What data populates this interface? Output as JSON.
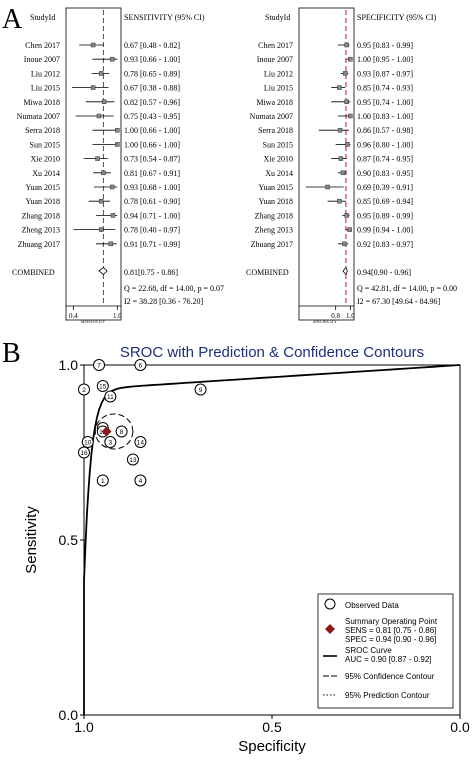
{
  "panel_a": {
    "label": "A",
    "sensitivity": {
      "header_study": "StudyId",
      "header_value": "SENSITIVITY (95% CI)",
      "axis_label": "SENSITIVITY",
      "tick_labels": [
        "0.4",
        "1.0"
      ],
      "combined_label": "COMBINED",
      "combined_text": "0.81[0.75 - 0.86]",
      "stat_q": "Q = 22.68, df = 14.00, p = 0.07",
      "stat_i2": "I2 = 38.28 [0.36 - 76.20]"
    },
    "specificity": {
      "header_study": "StudyId",
      "header_value": "SPECIFICITY (95% CI)",
      "axis_label": "SPECIFICITY",
      "tick_labels": [
        "0.8",
        "1.0"
      ],
      "combined_label": "COMBINED",
      "combined_text": "0.94[0.90 - 0.96]",
      "stat_q": "Q = 42.81, df = 14.00, p = 0.00",
      "stat_i2": "I2 = 67.30 [49.64 - 84.96]"
    }
  },
  "panel_b": {
    "label": "B",
    "legend": {
      "observed": "Observed Data",
      "summary_point": "Summary Operating Point",
      "sens": "SENS = 0.81 [0.75 - 0.86]",
      "spec": "SPEC = 0.94 [0.90 - 0.96]",
      "sroc": "SROC Curve",
      "auc": "AUC = 0.90 [0.87 - 0.92]",
      "confidence": "95% Confidence Contour",
      "prediction": "95% Prediction Contour"
    }
  },
  "chart_data": [
    {
      "type": "forest",
      "studies": [
        "Chen 2017",
        "Inoue 2007",
        "Liu 2012",
        "Liu 2015",
        "Miwa 2018",
        "Numata 2007",
        "Serra 2018",
        "Sun 2015",
        "Xie 2010",
        "Xu 2014",
        "Yuan 2015",
        "Yuan 2018",
        "Zhang 2018",
        "Zheng 2013",
        "Zhuang 2017"
      ],
      "series": [
        {
          "name": "SENSITIVITY",
          "estimate": [
            0.67,
            0.93,
            0.78,
            0.67,
            0.82,
            0.75,
            1.0,
            1.0,
            0.73,
            0.81,
            0.93,
            0.78,
            0.94,
            0.78,
            0.91
          ],
          "lower": [
            0.48,
            0.66,
            0.65,
            0.38,
            0.57,
            0.43,
            0.66,
            0.66,
            0.54,
            0.67,
            0.68,
            0.61,
            0.71,
            0.4,
            0.71
          ],
          "upper": [
            0.82,
            1.0,
            0.89,
            0.88,
            0.96,
            0.95,
            1.0,
            1.0,
            0.87,
            0.91,
            1.0,
            0.9,
            1.0,
            0.97,
            0.99
          ],
          "labels": [
            "0.67 [0.48 - 0.82]",
            "0.93 [0.66 - 1.00]",
            "0.78 [0.65 - 0.89]",
            "0.67 [0.38 - 0.88]",
            "0.82 [0.57 - 0.96]",
            "0.75 [0.43 - 0.95]",
            "1.00 [0.66 - 1.00]",
            "1.00 [0.66 - 1.00]",
            "0.73 [0.54 - 0.87]",
            "0.81 [0.67 - 0.91]",
            "0.93 [0.68 - 1.00]",
            "0.78 [0.61 - 0.90]",
            "0.94 [0.71 - 1.00]",
            "0.78 [0.40 - 0.97]",
            "0.91 [0.71 - 0.99]"
          ],
          "combined": 0.81,
          "combined_lower": 0.75,
          "combined_upper": 0.86,
          "xlim": [
            0.3,
            1.05
          ],
          "ticks": [
            0.4,
            1.0
          ]
        },
        {
          "name": "SPECIFICITY",
          "estimate": [
            0.95,
            1.0,
            0.93,
            0.85,
            0.95,
            1.0,
            0.86,
            0.96,
            0.87,
            0.9,
            0.69,
            0.85,
            0.95,
            0.99,
            0.92
          ],
          "lower": [
            0.83,
            0.95,
            0.87,
            0.74,
            0.74,
            0.83,
            0.57,
            0.8,
            0.74,
            0.83,
            0.39,
            0.69,
            0.89,
            0.94,
            0.83
          ],
          "upper": [
            0.99,
            1.0,
            0.97,
            0.93,
            1.0,
            1.0,
            0.98,
            1.0,
            0.95,
            0.95,
            0.91,
            0.94,
            0.99,
            1.0,
            0.97
          ],
          "labels": [
            "0.95 [0.83 - 0.99]",
            "1.00 [0.95 - 1.00]",
            "0.93 [0.87 - 0.97]",
            "0.85 [0.74 - 0.93]",
            "0.95 [0.74 - 1.00]",
            "1.00 [0.83 - 1.00]",
            "0.86 [0.57 - 0.98]",
            "0.96 [0.80 - 1.00]",
            "0.87 [0.74 - 0.95]",
            "0.90 [0.83 - 0.95]",
            "0.69 [0.39 - 0.91]",
            "0.85 [0.69 - 0.94]",
            "0.95 [0.89 - 0.99]",
            "0.99 [0.94 - 1.00]",
            "0.92 [0.83 - 0.97]"
          ],
          "combined": 0.94,
          "combined_lower": 0.9,
          "combined_upper": 0.96,
          "xlim": [
            0.3,
            1.05
          ],
          "ticks": [
            0.8,
            1.0
          ]
        }
      ]
    },
    {
      "type": "scatter",
      "title": "SROC with Prediction & Confidence Contours",
      "xlabel": "Specificity",
      "ylabel": "Sensitivity",
      "xlim": [
        1.0,
        0.0
      ],
      "ylim": [
        0.0,
        1.0
      ],
      "xticks": [
        "1.0",
        "0.5",
        "0.0"
      ],
      "yticks": [
        "0.0",
        "0.5",
        "1.0"
      ],
      "points": [
        {
          "label": "1",
          "spec": 0.95,
          "sens": 0.67
        },
        {
          "label": "2",
          "spec": 1.0,
          "sens": 0.93
        },
        {
          "label": "3",
          "spec": 0.93,
          "sens": 0.78
        },
        {
          "label": "4",
          "spec": 0.85,
          "sens": 0.67
        },
        {
          "label": "5",
          "spec": 0.95,
          "sens": 0.82
        },
        {
          "label": "6",
          "spec": 0.85,
          "sens": 1.0
        },
        {
          "label": "7",
          "spec": 0.96,
          "sens": 1.0
        },
        {
          "label": "8",
          "spec": 0.9,
          "sens": 0.81
        },
        {
          "label": "9",
          "spec": 0.69,
          "sens": 0.93
        },
        {
          "label": "10",
          "spec": 0.99,
          "sens": 0.78
        },
        {
          "label": "11",
          "spec": 0.93,
          "sens": 0.91
        },
        {
          "label": "12",
          "spec": 0.95,
          "sens": 0.81
        },
        {
          "label": "13",
          "spec": 0.87,
          "sens": 0.73
        },
        {
          "label": "14",
          "spec": 0.85,
          "sens": 0.78
        },
        {
          "label": "15",
          "spec": 0.95,
          "sens": 0.94
        },
        {
          "label": "16",
          "spec": 1.0,
          "sens": 0.75
        }
      ],
      "summary_point": {
        "spec": 0.94,
        "sens": 0.81
      },
      "confidence_contour": {
        "spec_center": 0.92,
        "sens_center": 0.81,
        "spec_radius": 0.05,
        "sens_radius": 0.05
      },
      "auc": 0.9
    }
  ]
}
